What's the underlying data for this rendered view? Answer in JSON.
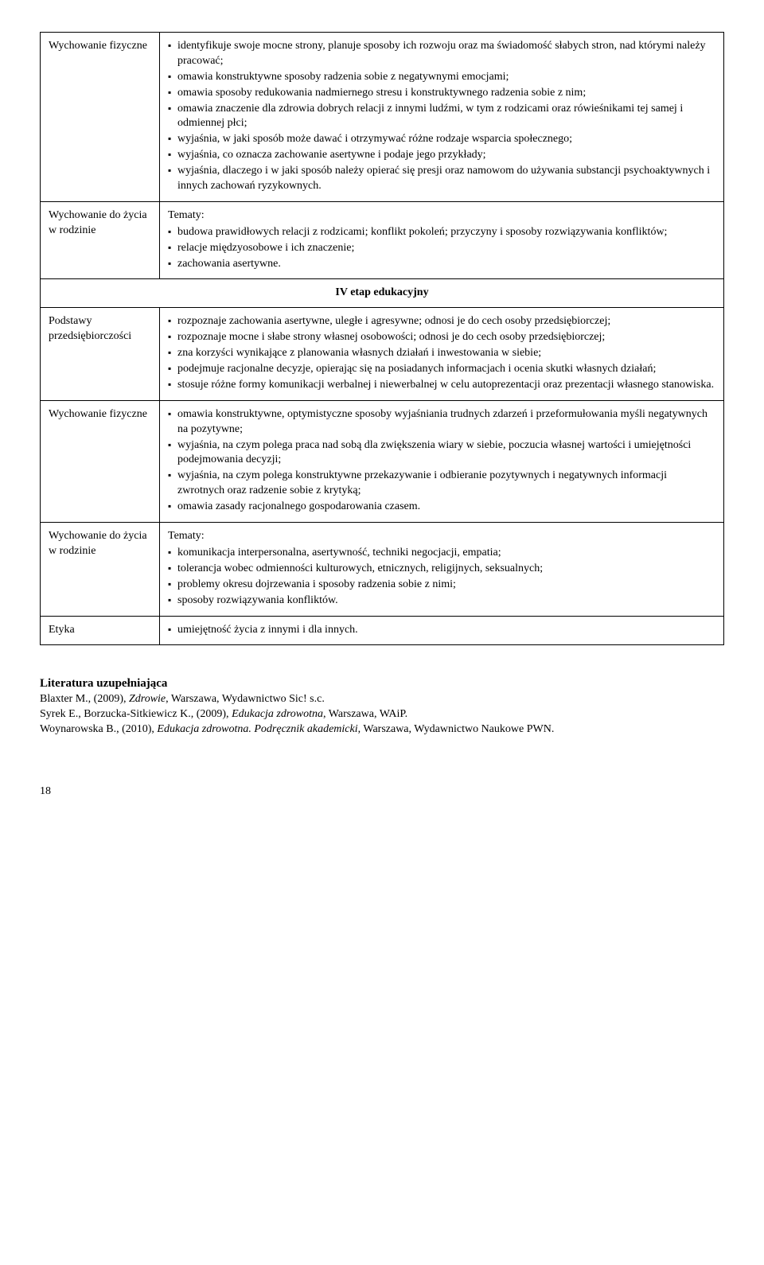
{
  "rows": [
    {
      "label": "Wychowanie fizyczne",
      "tematy": null,
      "items": [
        "identyfikuje swoje mocne strony, planuje sposoby ich rozwoju oraz ma świadomość słabych stron, nad którymi należy pracować;",
        "omawia konstruktywne sposoby radzenia sobie z negatywnymi emocjami;",
        "omawia sposoby redukowania nadmiernego stresu i konstruktywnego radzenia sobie z nim;",
        "omawia znaczenie dla zdrowia dobrych relacji z innymi ludźmi, w tym z rodzicami oraz rówieśnikami tej samej i odmiennej płci;",
        "wyjaśnia, w jaki sposób może dawać i otrzymywać różne rodzaje wsparcia społecznego;",
        "wyjaśnia, co oznacza zachowanie asertywne i podaje jego przykłady;",
        "wyjaśnia, dlaczego i w jaki sposób należy opierać się presji oraz namowom do używania substancji psychoaktywnych i innych zachowań ryzykownych."
      ]
    },
    {
      "label": "Wychowanie do życia w rodzinie",
      "tematy": "Tematy:",
      "items": [
        "budowa prawidłowych relacji z rodzicami; konflikt pokoleń; przyczyny i sposoby rozwiązywania konfliktów;",
        "relacje międzyosobowe i ich znaczenie;",
        "zachowania asertywne."
      ]
    }
  ],
  "stageHeader": "IV etap edukacyjny",
  "rows2": [
    {
      "label": "Podstawy przedsiębiorczości",
      "tematy": null,
      "items": [
        "rozpoznaje zachowania asertywne, uległe i agresywne; odnosi je do cech osoby przedsiębiorczej;",
        "rozpoznaje mocne i słabe strony własnej osobowości; odnosi je do cech osoby przedsiębiorczej;",
        "zna korzyści wynikające z planowania własnych działań i inwestowania w siebie;",
        "podejmuje racjonalne decyzje, opierając się na posiadanych informacjach i ocenia skutki własnych działań;",
        "stosuje różne formy komunikacji werbalnej i niewerbalnej w celu autoprezentacji oraz prezentacji własnego stanowiska."
      ]
    },
    {
      "label": "Wychowanie fizyczne",
      "tematy": null,
      "items": [
        "omawia konstruktywne, optymistyczne sposoby wyjaśniania trudnych zdarzeń i przeformułowania myśli negatywnych na pozytywne;",
        "wyjaśnia, na czym polega praca nad sobą dla zwiększenia wiary w siebie, poczucia własnej wartości i umiejętności podejmowania decyzji;",
        "wyjaśnia, na czym polega konstruktywne przekazywanie i odbieranie pozytywnych i negatywnych informacji zwrotnych oraz radzenie sobie z krytyką;",
        "omawia zasady racjonalnego gospodarowania czasem."
      ]
    },
    {
      "label": "Wychowanie do życia w rodzinie",
      "tematy": "Tematy:",
      "items": [
        "komunikacja interpersonalna, asertywność, techniki negocjacji, empatia;",
        "tolerancja wobec odmienności kulturowych, etnicznych, religijnych, seksualnych;",
        "problemy okresu dojrzewania i sposoby radzenia sobie z nimi;",
        "sposoby rozwiązywania konfliktów."
      ]
    },
    {
      "label": "Etyka",
      "tematy": null,
      "items": [
        "umiejętność życia z innymi i dla innych."
      ]
    }
  ],
  "literature": {
    "heading": "Literatura uzupełniająca",
    "entries": [
      {
        "pre": "Blaxter M., (2009), ",
        "title": "Zdrowie",
        "post": ", Warszawa, Wydawnictwo Sic! s.c."
      },
      {
        "pre": "Syrek E., Borzucka-Sitkiewicz K., (2009), ",
        "title": "Edukacja zdrowotna",
        "post": ", Warszawa, WAiP."
      },
      {
        "pre": "Woynarowska B., (2010), ",
        "title": "Edukacja zdrowotna. Podręcznik akademicki",
        "post": ", Warszawa, Wydawnictwo Naukowe PWN."
      }
    ]
  },
  "pageNumber": "18"
}
